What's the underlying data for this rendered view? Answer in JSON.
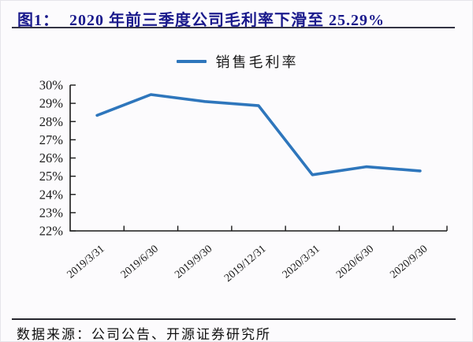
{
  "figure": {
    "title_label": "图1：",
    "title_text": "2020 年前三季度公司毛利率下滑至 25.29%",
    "source": "数据来源：公司公告、开源证券研究所"
  },
  "chart_data": {
    "type": "line",
    "title": "图1：2020 年前三季度公司毛利率下滑至 25.29%",
    "categories": [
      "2019/3/31",
      "2019/6/30",
      "2019/9/30",
      "2019/12/31",
      "2020/3/31",
      "2020/6/30",
      "2020/9/30"
    ],
    "series": [
      {
        "name": "销售毛利率",
        "values": [
          28.34,
          29.48,
          29.1,
          28.87,
          25.08,
          25.52,
          25.29
        ]
      }
    ],
    "ylim": [
      22,
      30
    ],
    "ytick_step": 1,
    "ytick_suffix": "%",
    "grid": false,
    "legend_position": "top-center",
    "xlabel": "",
    "ylabel": "",
    "colors": {
      "series": "#2E76BC",
      "axis": "#1a1a1a",
      "tick_label": "#1a1a1a",
      "title": "#1A1A8C"
    }
  }
}
